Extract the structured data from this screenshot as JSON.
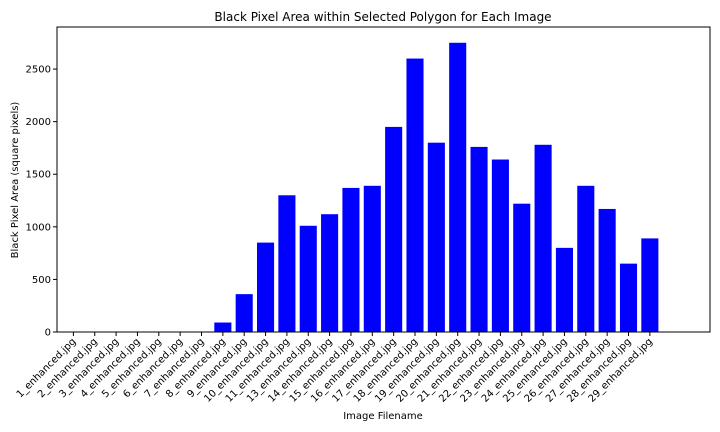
{
  "chart_data": {
    "type": "bar",
    "title": "Black Pixel Area within Selected Polygon for Each Image",
    "xlabel": "Image Filename",
    "ylabel": "Black Pixel Area (square pixels)",
    "ylim": [
      0,
      2900
    ],
    "yticks": [
      0,
      500,
      1000,
      1500,
      2000,
      2500
    ],
    "grid": false,
    "bar_color": "#0000ff",
    "categories": [
      "1_enhanced.jpg",
      "2_enhanced.jpg",
      "3_enhanced.jpg",
      "4_enhanced.jpg",
      "5_enhanced.jpg",
      "6_enhanced.jpg",
      "7_enhanced.jpg",
      "8_enhanced.jpg",
      "9_enhanced.jpg",
      "10_enhanced.jpg",
      "11_enhanced.jpg",
      "13_enhanced.jpg",
      "14_enhanced.jpg",
      "15_enhanced.jpg",
      "16_enhanced.jpg",
      "17_enhanced.jpg",
      "18_enhanced.jpg",
      "19_enhanced.jpg",
      "20_enhanced.jpg",
      "21_enhanced.jpg",
      "22_enhanced.jpg",
      "23_enhanced.jpg",
      "24_enhanced.jpg",
      "25_enhanced.jpg",
      "26_enhanced.jpg",
      "27_enhanced.jpg",
      "28_enhanced.jpg",
      "29_enhanced.jpg"
    ],
    "values": [
      0,
      0,
      0,
      0,
      0,
      0,
      0,
      90,
      360,
      850,
      1300,
      1010,
      1120,
      1370,
      1390,
      1950,
      2600,
      1800,
      2750,
      1760,
      1640,
      1220,
      1780,
      800,
      1390,
      1170,
      650,
      890
    ]
  }
}
